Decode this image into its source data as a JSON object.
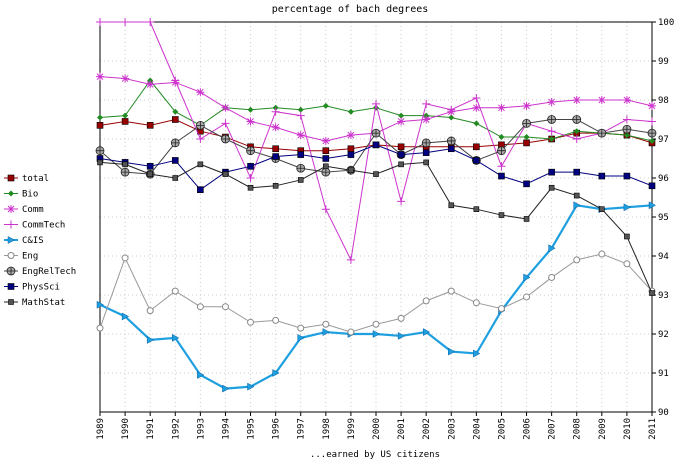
{
  "chart_data": {
    "type": "line",
    "title": "percentage of bach degrees",
    "xlabel": "...earned by US citizens",
    "ylabel": "",
    "x": [
      1989,
      1990,
      1991,
      1992,
      1993,
      1994,
      1995,
      1996,
      1997,
      1998,
      1999,
      2000,
      2001,
      2002,
      2003,
      2004,
      2005,
      2006,
      2007,
      2008,
      2009,
      2010,
      2011
    ],
    "ylim": [
      90,
      100
    ],
    "yticks": [
      90,
      91,
      92,
      93,
      94,
      95,
      96,
      97,
      98,
      99,
      100
    ],
    "grid": true,
    "legend_position": "left",
    "series": [
      {
        "name": "total",
        "color": "#990000",
        "marker": "square",
        "values": [
          97.35,
          97.45,
          97.35,
          97.5,
          97.2,
          97.05,
          96.8,
          96.75,
          96.7,
          96.7,
          96.75,
          96.85,
          96.8,
          96.8,
          96.8,
          96.8,
          96.85,
          96.9,
          97.0,
          97.15,
          97.15,
          97.1,
          96.9
        ]
      },
      {
        "name": "Bio",
        "color": "#228b22",
        "marker": "diamond",
        "values": [
          97.55,
          97.6,
          98.5,
          97.7,
          97.35,
          97.8,
          97.75,
          97.8,
          97.75,
          97.85,
          97.7,
          97.8,
          97.6,
          97.6,
          97.55,
          97.4,
          97.05,
          97.05,
          97.0,
          97.2,
          97.15,
          97.1,
          96.95
        ]
      },
      {
        "name": "Comm",
        "color": "#cc33cc",
        "marker": "star",
        "values": [
          98.6,
          98.55,
          98.4,
          98.45,
          98.2,
          97.8,
          97.45,
          97.3,
          97.1,
          96.95,
          97.1,
          97.15,
          97.45,
          97.5,
          97.7,
          97.8,
          97.8,
          97.85,
          97.95,
          98.0,
          98.0,
          98.0,
          97.85
        ]
      },
      {
        "name": "CommTech",
        "color": "#cc33cc",
        "marker": "plus",
        "values": [
          100.0,
          100.0,
          100.0,
          98.5,
          97.0,
          97.4,
          96.0,
          97.7,
          97.6,
          95.2,
          93.9,
          97.9,
          95.4,
          97.9,
          97.75,
          98.05,
          96.3,
          97.4,
          97.2,
          97.0,
          97.15,
          97.5,
          97.45
        ]
      },
      {
        "name": "C&IS",
        "color": "#1e9fdf",
        "marker": "triangle",
        "values": [
          92.75,
          92.45,
          91.85,
          91.9,
          90.95,
          90.6,
          90.65,
          91.0,
          91.9,
          92.05,
          92.0,
          92.0,
          91.95,
          92.05,
          91.55,
          91.5,
          92.6,
          93.45,
          94.2,
          95.3,
          95.2,
          95.25,
          95.3
        ]
      },
      {
        "name": "Eng",
        "color": "#999999",
        "marker": "circle",
        "values": [
          92.15,
          93.95,
          92.6,
          93.1,
          92.7,
          92.7,
          92.3,
          92.35,
          92.15,
          92.25,
          92.05,
          92.25,
          92.4,
          92.85,
          93.1,
          92.8,
          92.65,
          92.95,
          93.45,
          93.9,
          94.05,
          93.8,
          93.1
        ]
      },
      {
        "name": "EngRelTech",
        "color": "#444444",
        "marker": "circleplus",
        "values": [
          96.7,
          96.15,
          96.1,
          96.9,
          97.35,
          97.0,
          96.7,
          96.5,
          96.25,
          96.15,
          96.2,
          97.15,
          96.6,
          96.9,
          96.95,
          96.45,
          96.7,
          97.4,
          97.5,
          97.5,
          97.15,
          97.25,
          97.15
        ]
      },
      {
        "name": "PhysSci",
        "color": "#000080",
        "marker": "square",
        "values": [
          96.5,
          96.4,
          96.3,
          96.45,
          95.7,
          96.15,
          96.3,
          96.55,
          96.6,
          96.5,
          96.6,
          96.85,
          96.6,
          96.65,
          96.75,
          96.45,
          96.05,
          95.85,
          96.15,
          96.15,
          96.05,
          96.05,
          95.8
        ]
      },
      {
        "name": "MathStat",
        "color": "#222222",
        "marker": "smallsquare",
        "values": [
          96.4,
          96.35,
          96.1,
          96.0,
          96.35,
          96.1,
          95.75,
          95.8,
          95.95,
          96.3,
          96.2,
          96.1,
          96.35,
          96.4,
          95.3,
          95.2,
          95.05,
          94.95,
          95.75,
          95.55,
          95.2,
          94.5,
          93.05
        ]
      }
    ]
  }
}
